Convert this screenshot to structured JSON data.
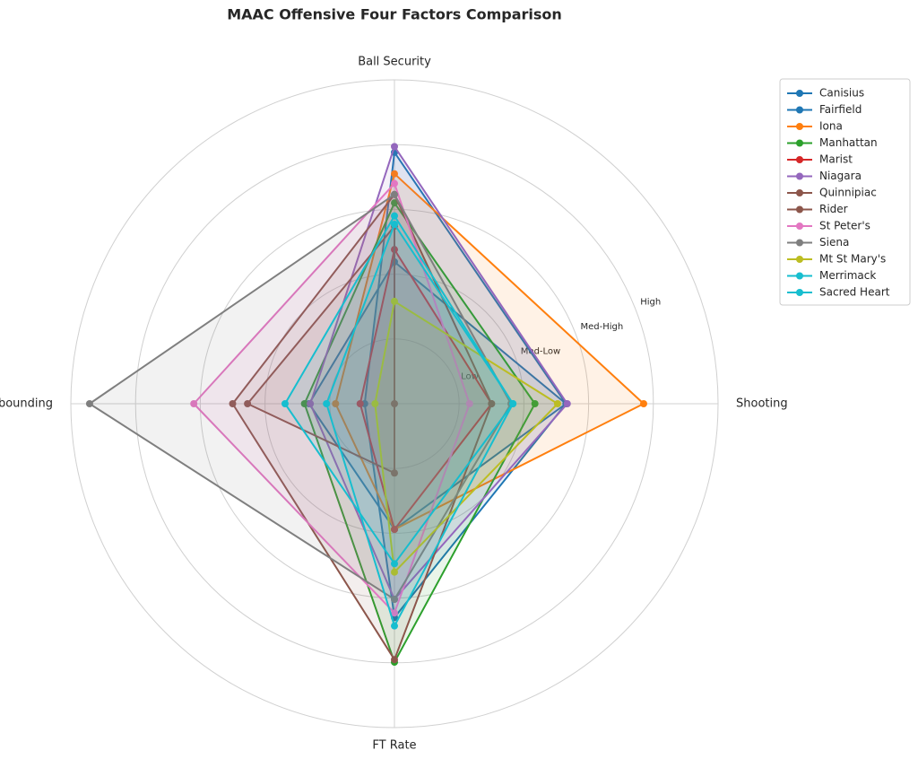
{
  "chart_data": {
    "type": "radar",
    "title": "MAAC Offensive Four Factors Comparison",
    "categories": [
      "Shooting",
      "Ball Security",
      "Off Rebounding",
      "FT Rate"
    ],
    "ylim": [
      0,
      5
    ],
    "yticks": [
      {
        "value": 1,
        "label": "Low"
      },
      {
        "value": 2,
        "label": "Med-Low"
      },
      {
        "value": 3,
        "label": "Med-High"
      },
      {
        "value": 4,
        "label": "High"
      }
    ],
    "grid": true,
    "legend": "upper right",
    "series": [
      {
        "name": "Canisius",
        "color": "#1f77b4",
        "values": [
          2.65,
          2.19,
          1.32,
          1.94
        ]
      },
      {
        "name": "Fairfield",
        "color": "#1f77b4",
        "values": [
          2.65,
          3.88,
          0.46,
          3.3
        ]
      },
      {
        "name": "Iona",
        "color": "#ff7f0e",
        "values": [
          3.85,
          3.55,
          0.91,
          1.94
        ]
      },
      {
        "name": "Manhattan",
        "color": "#2ca02c",
        "values": [
          2.17,
          3.1,
          1.39,
          3.99
        ]
      },
      {
        "name": "Marist",
        "color": "#d62728",
        "values": [
          1.5,
          2.38,
          0.53,
          1.94
        ]
      },
      {
        "name": "Niagara",
        "color": "#9467bd",
        "values": [
          2.67,
          3.97,
          1.3,
          3.02
        ]
      },
      {
        "name": "Quinnipiac",
        "color": "#8c564b",
        "values": [
          1.5,
          3.23,
          2.5,
          3.95
        ]
      },
      {
        "name": "Rider",
        "color": "#8c564b",
        "values": [
          0,
          2.74,
          2.27,
          1.07
        ]
      },
      {
        "name": "St Peter's",
        "color": "#e377c2",
        "values": [
          1.16,
          3.4,
          3.1,
          3.23
        ]
      },
      {
        "name": "Siena",
        "color": "#7f7f7f",
        "values": [
          1.8,
          3.23,
          4.71,
          3.02
        ]
      },
      {
        "name": "Mt St Mary's",
        "color": "#bcbd22",
        "values": [
          2.52,
          1.58,
          0.3,
          2.6
        ]
      },
      {
        "name": "Merrimack",
        "color": "#17becf",
        "values": [
          1.83,
          2.9,
          1.69,
          2.47
        ]
      },
      {
        "name": "Sacred Heart",
        "color": "#17becf",
        "values": [
          1.83,
          2.77,
          1.05,
          3.43
        ]
      }
    ]
  }
}
